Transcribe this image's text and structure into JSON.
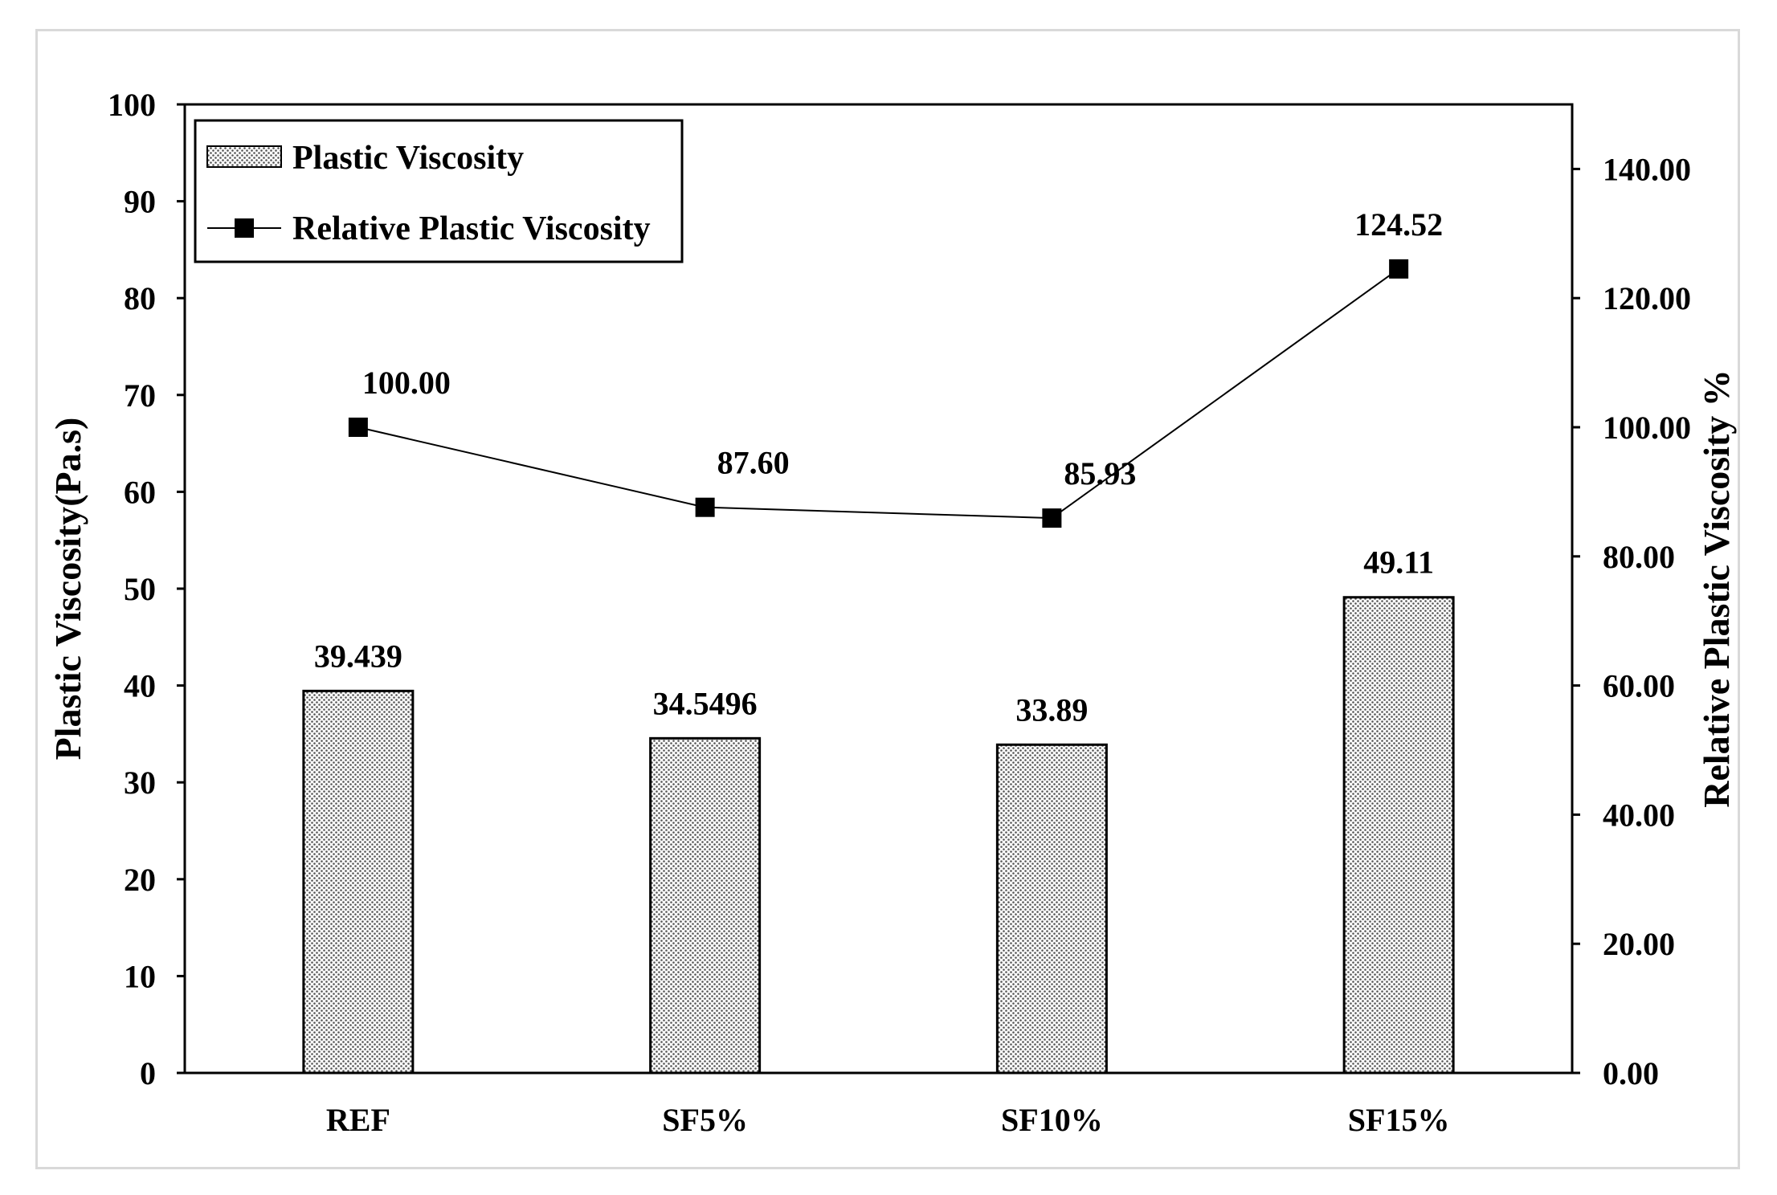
{
  "chart_data": {
    "type": "bar",
    "categories": [
      "REF",
      "SF5%",
      "SF10%",
      "SF15%"
    ],
    "series": [
      {
        "name": "Plastic Viscosity",
        "type": "bar",
        "axis": "left",
        "values": [
          39.439,
          34.5496,
          33.89,
          49.11
        ],
        "labels": [
          "39.439",
          "34.5496",
          "33.89",
          "49.11"
        ]
      },
      {
        "name": "Relative Plastic Viscosity",
        "type": "line",
        "axis": "right",
        "values": [
          100.0,
          87.6,
          85.93,
          124.52
        ],
        "labels": [
          "100.00",
          "87.60",
          "85.93",
          "124.52"
        ]
      }
    ],
    "ylabel": "Plastic Viscosity(Pa.s)",
    "y2label": "Relative Plastic Viscosity %",
    "ylim": [
      0,
      100
    ],
    "y2lim": [
      0,
      150
    ],
    "yticks": [
      "0",
      "10",
      "20",
      "30",
      "40",
      "50",
      "60",
      "70",
      "80",
      "90",
      "100"
    ],
    "y2ticks": [
      "0.00",
      "20.00",
      "40.00",
      "60.00",
      "80.00",
      "100.00",
      "120.00",
      "140.00"
    ],
    "grid": false,
    "legend_position": "top-left",
    "bar_fill": "dotted-pattern",
    "line_color": "#000000",
    "marker": "square"
  }
}
